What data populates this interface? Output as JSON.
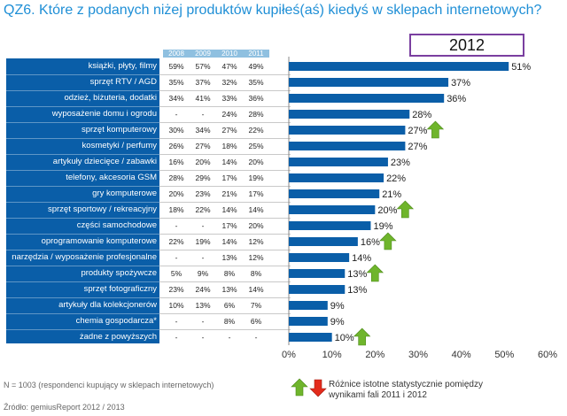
{
  "title": "QZ6. Które z podanych niżej produktów kupiłeś(aś) kiedyś w sklepach internetowych?",
  "highlight_year": "2012",
  "table": {
    "columns": [
      "2008",
      "2009",
      "2010",
      "2011"
    ],
    "rows": [
      {
        "label": "książki, płyty, filmy",
        "values": [
          "59%",
          "57%",
          "47%",
          "49%"
        ]
      },
      {
        "label": "sprzęt RTV / AGD",
        "values": [
          "35%",
          "37%",
          "32%",
          "35%"
        ]
      },
      {
        "label": "odzież, biżuteria, dodatki",
        "values": [
          "34%",
          "41%",
          "33%",
          "36%"
        ]
      },
      {
        "label": "wyposażenie domu i ogrodu",
        "values": [
          "-",
          "-",
          "24%",
          "28%"
        ]
      },
      {
        "label": "sprzęt komputerowy",
        "values": [
          "30%",
          "34%",
          "27%",
          "22%"
        ]
      },
      {
        "label": "kosmetyki / perfumy",
        "values": [
          "26%",
          "27%",
          "18%",
          "25%"
        ]
      },
      {
        "label": "artykuły dziecięce / zabawki",
        "values": [
          "16%",
          "20%",
          "14%",
          "20%"
        ]
      },
      {
        "label": "telefony, akcesoria GSM",
        "values": [
          "28%",
          "29%",
          "17%",
          "19%"
        ]
      },
      {
        "label": "gry komputerowe",
        "values": [
          "20%",
          "23%",
          "21%",
          "17%"
        ]
      },
      {
        "label": "sprzęt sportowy / rekreacyjny",
        "values": [
          "18%",
          "22%",
          "14%",
          "14%"
        ]
      },
      {
        "label": "części samochodowe",
        "values": [
          "-",
          "-",
          "17%",
          "20%"
        ]
      },
      {
        "label": "oprogramowanie komputerowe",
        "values": [
          "22%",
          "19%",
          "14%",
          "12%"
        ]
      },
      {
        "label": "narzędzia / wyposażenie profesjonalne",
        "values": [
          "-",
          "-",
          "13%",
          "12%"
        ]
      },
      {
        "label": "produkty spożywcze",
        "values": [
          "5%",
          "9%",
          "8%",
          "8%"
        ]
      },
      {
        "label": "sprzęt fotograficzny",
        "values": [
          "23%",
          "24%",
          "13%",
          "14%"
        ]
      },
      {
        "label": "artykuły dla kolekcjonerów",
        "values": [
          "10%",
          "13%",
          "6%",
          "7%"
        ]
      },
      {
        "label": "chemia gospodarcza*",
        "values": [
          "-",
          "-",
          "8%",
          "6%"
        ]
      },
      {
        "label": "żadne z powyższych",
        "values": [
          "-",
          "-",
          "-",
          "-"
        ]
      }
    ]
  },
  "chart_data": {
    "type": "bar",
    "orientation": "horizontal",
    "series_name": "2012",
    "categories": [
      "książki, płyty, filmy",
      "sprzęt RTV / AGD",
      "odzież, biżuteria, dodatki",
      "wyposażenie domu i ogrodu",
      "sprzęt komputerowy",
      "kosmetyki / perfumy",
      "artykuły dziecięce / zabawki",
      "telefony, akcesoria GSM",
      "gry komputerowe",
      "sprzęt sportowy / rekreacyjny",
      "części samochodowe",
      "oprogramowanie komputerowe",
      "narzędzia / wyposażenie profesjonalne",
      "produkty spożywcze",
      "sprzęt fotograficzny",
      "artykuły dla kolekcjonerów",
      "chemia gospodarcza*",
      "żadne z powyższych"
    ],
    "values": [
      51,
      37,
      36,
      28,
      27,
      27,
      23,
      22,
      21,
      20,
      19,
      16,
      14,
      13,
      13,
      9,
      9,
      10
    ],
    "value_labels": [
      "51%",
      "37%",
      "36%",
      "28%",
      "27%",
      "27%",
      "23%",
      "22%",
      "21%",
      "20%",
      "19%",
      "16%",
      "14%",
      "13%",
      "13%",
      "9%",
      "9%",
      "10%"
    ],
    "significant_up": [
      false,
      false,
      false,
      false,
      true,
      false,
      false,
      false,
      false,
      true,
      false,
      true,
      false,
      true,
      false,
      false,
      false,
      true
    ],
    "xlim": [
      0,
      60
    ],
    "xticks": [
      0,
      10,
      20,
      30,
      40,
      50,
      60
    ],
    "xtick_labels": [
      "0%",
      "10%",
      "20%",
      "30%",
      "40%",
      "50%",
      "60%"
    ],
    "bar_color": "#0a5ea8",
    "up_arrow_color": "#6fb52c",
    "down_arrow_color": "#e32b1c"
  },
  "footnotes": {
    "sample": "N = 1003 (respondenci kupujący w sklepach internetowych)",
    "source": "Źródło: gemiusReport 2012 / 2013"
  },
  "legend": {
    "text": "Różnice istotne statystycznie pomiędzy wynikami fali 2011 i 2012"
  }
}
